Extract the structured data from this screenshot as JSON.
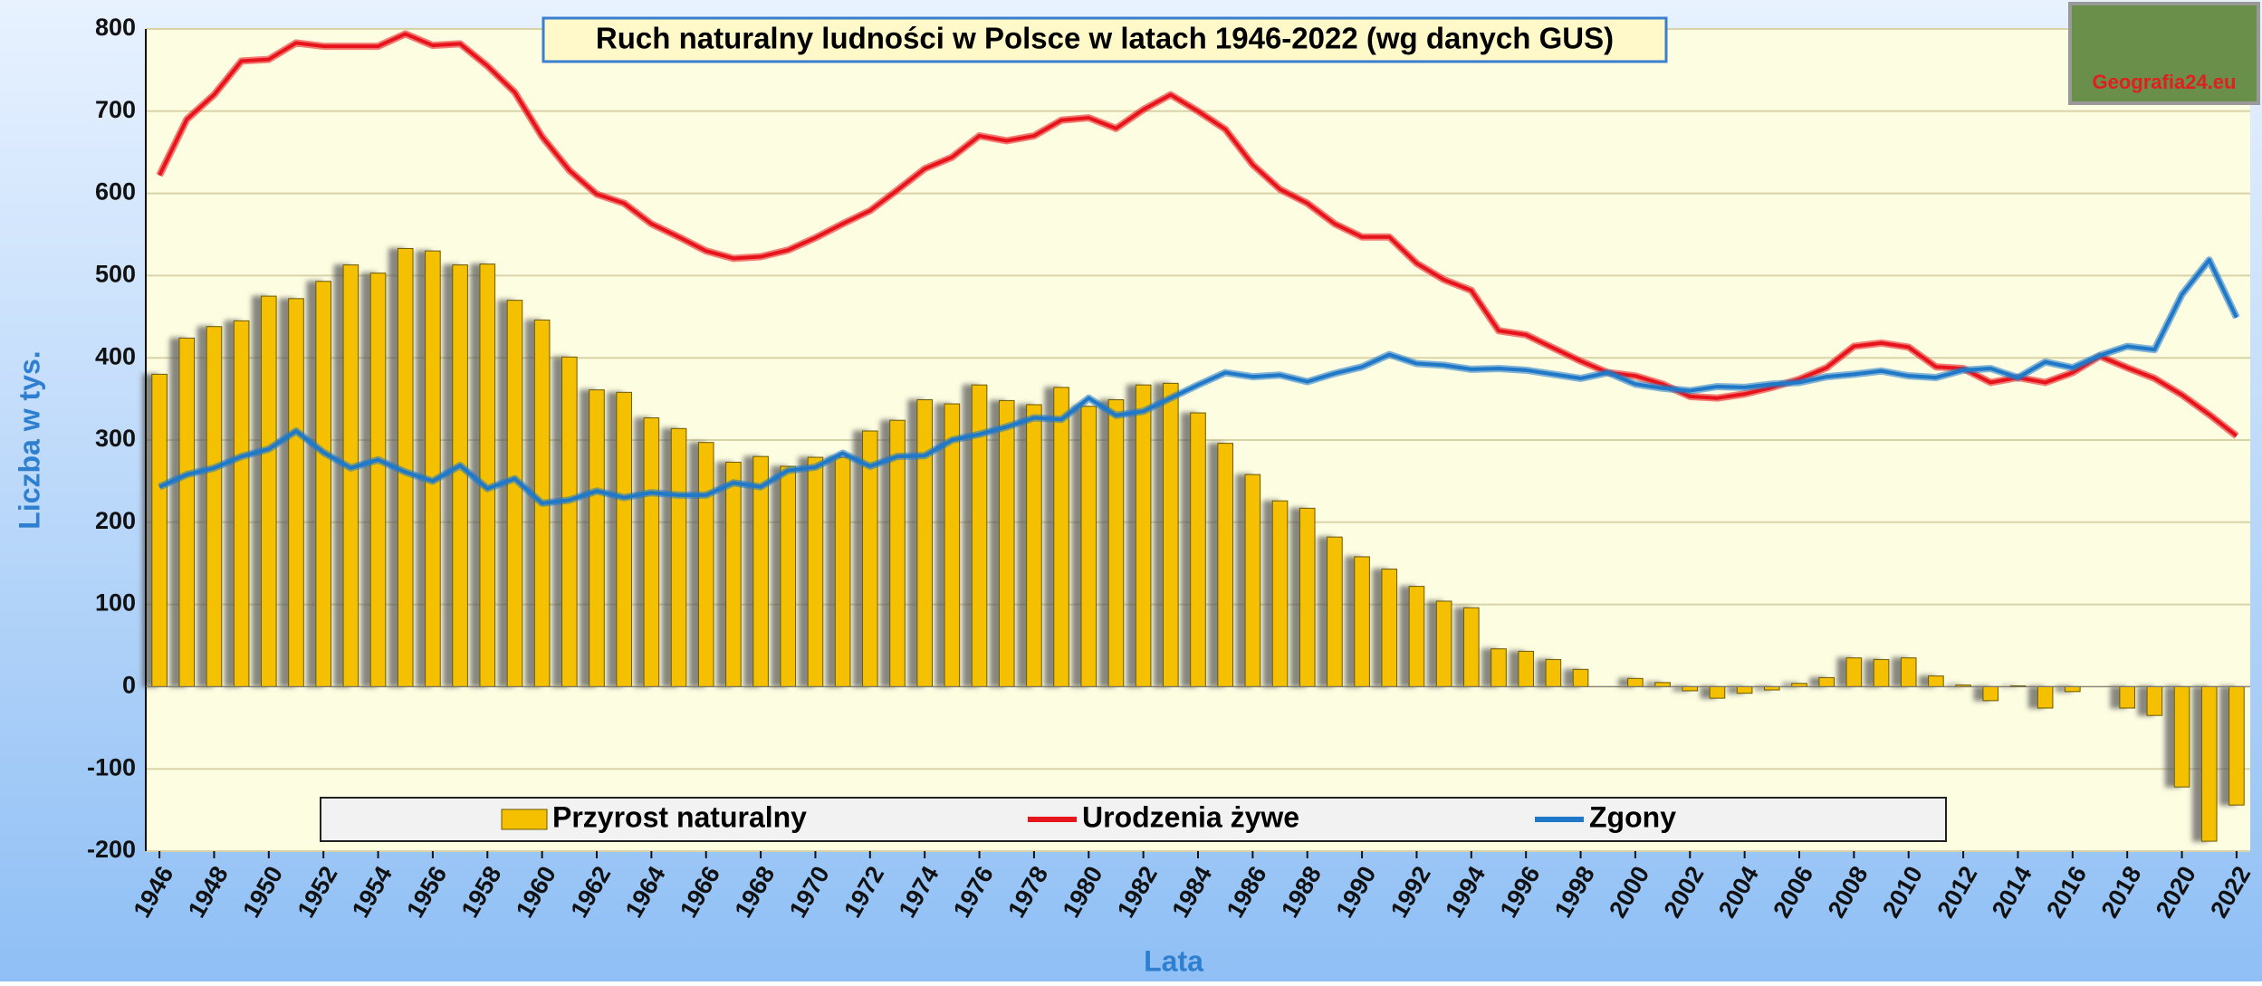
{
  "chart_data": {
    "type": "combo",
    "title": "Ruch naturalny ludności w Polsce w latach 1946-2022 (wg danych GUS)",
    "x_label": "Lata",
    "y_label": "Liczba w tys.",
    "logo": "Geografia24.eu",
    "x": [
      1946,
      1947,
      1948,
      1949,
      1950,
      1951,
      1952,
      1953,
      1954,
      1955,
      1956,
      1957,
      1958,
      1959,
      1960,
      1961,
      1962,
      1963,
      1964,
      1965,
      1966,
      1967,
      1968,
      1969,
      1970,
      1971,
      1972,
      1973,
      1974,
      1975,
      1976,
      1977,
      1978,
      1979,
      1980,
      1981,
      1982,
      1983,
      1984,
      1985,
      1986,
      1987,
      1988,
      1989,
      1990,
      1991,
      1992,
      1993,
      1994,
      1995,
      1996,
      1997,
      1998,
      1999,
      2000,
      2001,
      2002,
      2003,
      2004,
      2005,
      2006,
      2007,
      2008,
      2009,
      2010,
      2011,
      2012,
      2013,
      2014,
      2015,
      2016,
      2017,
      2018,
      2019,
      2020,
      2021,
      2022
    ],
    "xlim": [
      1945.5,
      2022.5
    ],
    "xticks": [
      1946,
      1948,
      1950,
      1952,
      1954,
      1956,
      1958,
      1960,
      1962,
      1964,
      1966,
      1968,
      1970,
      1972,
      1974,
      1976,
      1978,
      1980,
      1982,
      1984,
      1986,
      1988,
      1990,
      1992,
      1994,
      1996,
      1998,
      2000,
      2002,
      2004,
      2006,
      2008,
      2010,
      2012,
      2014,
      2016,
      2018,
      2020,
      2022
    ],
    "ylim": [
      -200,
      800
    ],
    "yticks": [
      -200,
      -100,
      0,
      100,
      200,
      300,
      400,
      500,
      600,
      700,
      800
    ],
    "grid": true,
    "legend": "bottom",
    "series": [
      {
        "name": "Przyrost naturalny",
        "type": "bar",
        "color": "#f5c000",
        "values": [
          380,
          424,
          438,
          445,
          475,
          472,
          493,
          513,
          503,
          533,
          530,
          513,
          514,
          470,
          446,
          401,
          361,
          358,
          327,
          314,
          297,
          273,
          280,
          268,
          279,
          279,
          311,
          324,
          349,
          344,
          367,
          348,
          343,
          364,
          341,
          349,
          367,
          369,
          333,
          296,
          258,
          226,
          217,
          182,
          158,
          143,
          122,
          104,
          96,
          46,
          43,
          33,
          21,
          0,
          10,
          5,
          -5,
          -14,
          -8,
          -4,
          4,
          11,
          35,
          33,
          35,
          13,
          2,
          -17,
          1,
          -26,
          -6,
          0,
          -26,
          -35,
          -122,
          -188,
          -144
        ]
      },
      {
        "name": "Urodzenia żywe",
        "type": "line",
        "color": "#e8141b",
        "values": [
          622,
          690,
          720,
          761,
          763,
          783,
          779,
          779,
          779,
          794,
          780,
          782,
          755,
          723,
          669,
          628,
          599,
          588,
          563,
          547,
          530,
          521,
          523,
          531,
          546,
          563,
          579,
          604,
          630,
          644,
          670,
          664,
          670,
          689,
          692,
          679,
          702,
          720,
          700,
          678,
          635,
          605,
          588,
          563,
          547,
          547,
          515,
          495,
          482,
          433,
          428,
          412,
          396,
          382,
          378,
          368,
          353,
          351,
          356,
          364,
          374,
          388,
          414,
          418,
          413,
          389,
          387,
          370,
          376,
          370,
          382,
          402,
          388,
          375,
          355,
          331,
          305
        ]
      },
      {
        "name": "Zgony",
        "type": "line",
        "color": "#1f78c8",
        "values": [
          243,
          258,
          266,
          280,
          289,
          311,
          285,
          266,
          276,
          261,
          250,
          269,
          241,
          253,
          223,
          227,
          238,
          230,
          236,
          233,
          233,
          248,
          243,
          263,
          267,
          284,
          268,
          280,
          281,
          300,
          307,
          316,
          327,
          325,
          351,
          330,
          335,
          351,
          367,
          382,
          377,
          379,
          371,
          381,
          389,
          404,
          393,
          391,
          386,
          387,
          385,
          380,
          375,
          382,
          368,
          363,
          360,
          365,
          364,
          368,
          370,
          377,
          380,
          384,
          378,
          376,
          385,
          387,
          376,
          395,
          388,
          403,
          414,
          410,
          477,
          519,
          449
        ]
      }
    ]
  }
}
